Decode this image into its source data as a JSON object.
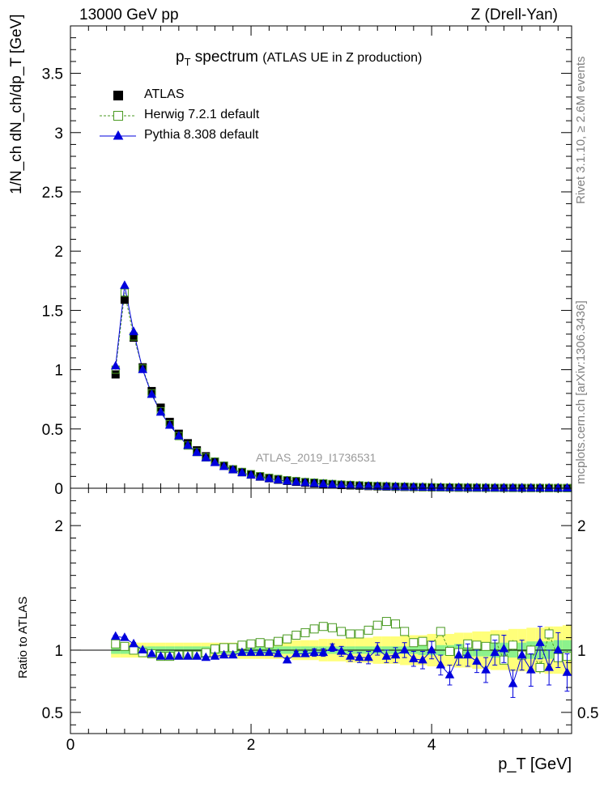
{
  "header": {
    "left": "13000 GeV pp",
    "right": "Z (Drell-Yan)"
  },
  "side_labels": {
    "rivet": "Rivet 3.1.10, ≥ 2.6M events",
    "mcplots": "mcplots.cern.ch [arXiv:1306.3436]"
  },
  "chart_data": [
    {
      "type": "scatter",
      "panel": "main",
      "title_main": "p",
      "title_sub": "T",
      "title_rest": " spectrum",
      "title_note": "(ATLAS UE in Z production)",
      "ylabel": "1/N_ch dN_ch/dp_T [GeV]",
      "xlim": [
        0,
        5.55
      ],
      "ylim": [
        0,
        3.9
      ],
      "yticks": [
        0,
        0.5,
        1,
        1.5,
        2,
        2.5,
        3,
        3.5
      ],
      "ytick_labels": [
        "0",
        "0.5",
        "1",
        "1.5",
        "2",
        "2.5",
        "3",
        "3.5"
      ],
      "analysis_label": "ATLAS_2019_I1736531",
      "legend": [
        "ATLAS",
        "Herwig 7.2.1 default",
        "Pythia 8.308 default"
      ],
      "legend_position": "top-left",
      "x": [
        0.5,
        0.6,
        0.7,
        0.8,
        0.9,
        1.0,
        1.1,
        1.2,
        1.3,
        1.4,
        1.5,
        1.6,
        1.7,
        1.8,
        1.9,
        2.0,
        2.1,
        2.2,
        2.3,
        2.4,
        2.5,
        2.6,
        2.7,
        2.8,
        2.9,
        3.0,
        3.1,
        3.2,
        3.3,
        3.4,
        3.5,
        3.6,
        3.7,
        3.8,
        3.9,
        4.0,
        4.1,
        4.2,
        4.3,
        4.4,
        4.5,
        4.6,
        4.7,
        4.8,
        4.9,
        5.0,
        5.1,
        5.2,
        5.3,
        5.4,
        5.5
      ],
      "series": [
        {
          "name": "ATLAS",
          "color": "#000000",
          "values": [
            0.96,
            1.59,
            1.27,
            1.02,
            0.82,
            0.68,
            0.56,
            0.46,
            0.38,
            0.32,
            0.27,
            0.225,
            0.19,
            0.16,
            0.135,
            0.115,
            0.098,
            0.084,
            0.072,
            0.062,
            0.054,
            0.047,
            0.041,
            0.036,
            0.031,
            0.027,
            0.024,
            0.021,
            0.018,
            0.016,
            0.014,
            0.012,
            0.011,
            0.0095,
            0.0085,
            0.0075,
            0.0066,
            0.0058,
            0.0051,
            0.0045,
            0.004,
            0.0035,
            0.0031,
            0.0027,
            0.0024,
            0.0021,
            0.0019,
            0.0017,
            0.0015,
            0.0013,
            0.0012
          ]
        },
        {
          "name": "Herwig 7.2.1 default",
          "color": "#4a9a22",
          "values": [
            1.0,
            1.65,
            1.28,
            1.01,
            0.8,
            0.65,
            0.54,
            0.44,
            0.36,
            0.305,
            0.26,
            0.225,
            0.19,
            0.16,
            0.138,
            0.119,
            0.102,
            0.088,
            0.078,
            0.068,
            0.061,
            0.053,
            0.048,
            0.042,
            0.036,
            0.031,
            0.028,
            0.024,
            0.021,
            0.019,
            0.017,
            0.014,
            0.013,
            0.011,
            0.0095,
            0.0085,
            0.0072,
            0.0064,
            0.0056,
            0.0049,
            0.0044,
            0.0039,
            0.0034,
            0.003,
            0.0026,
            0.0023,
            0.0021,
            0.0019,
            0.0016,
            0.0014,
            0.0013
          ]
        },
        {
          "name": "Pythia 8.308 default",
          "color": "#0000dd",
          "values": [
            1.03,
            1.71,
            1.32,
            1.0,
            0.79,
            0.64,
            0.53,
            0.44,
            0.36,
            0.3,
            0.255,
            0.215,
            0.182,
            0.154,
            0.13,
            0.11,
            0.094,
            0.08,
            0.07,
            0.06,
            0.052,
            0.046,
            0.04,
            0.035,
            0.03,
            0.026,
            0.023,
            0.02,
            0.017,
            0.015,
            0.013,
            0.012,
            0.01,
            0.0088,
            0.0077,
            0.0068,
            0.006,
            0.0052,
            0.0046,
            0.004,
            0.0036,
            0.0031,
            0.0027,
            0.0024,
            0.0021,
            0.0019,
            0.0016,
            0.0014,
            0.0012,
            0.0011,
            0.001
          ]
        }
      ]
    },
    {
      "type": "scatter",
      "panel": "ratio",
      "xlabel": "p_T [GeV]",
      "ylabel": "Ratio to ATLAS",
      "xlim": [
        0,
        5.55
      ],
      "ylim": [
        0.33,
        2.3
      ],
      "xticks": [
        0,
        2,
        4
      ],
      "xtick_labels": [
        "0",
        "2",
        "4"
      ],
      "yticks": [
        0.5,
        1,
        2
      ],
      "ytick_labels": [
        "0.5",
        "1",
        "2"
      ],
      "x": [
        0.5,
        0.6,
        0.7,
        0.8,
        0.9,
        1.0,
        1.1,
        1.2,
        1.3,
        1.4,
        1.5,
        1.6,
        1.7,
        1.8,
        1.9,
        2.0,
        2.1,
        2.2,
        2.3,
        2.4,
        2.5,
        2.6,
        2.7,
        2.8,
        2.9,
        3.0,
        3.1,
        3.2,
        3.3,
        3.4,
        3.5,
        3.6,
        3.7,
        3.8,
        3.9,
        4.0,
        4.1,
        4.2,
        4.3,
        4.4,
        4.5,
        4.6,
        4.7,
        4.8,
        4.9,
        5.0,
        5.1,
        5.2,
        5.3,
        5.4,
        5.5
      ],
      "band_inner": [
        0.03,
        0.03,
        0.03,
        0.03,
        0.03,
        0.03,
        0.03,
        0.03,
        0.03,
        0.03,
        0.03,
        0.03,
        0.03,
        0.03,
        0.03,
        0.03,
        0.03,
        0.03,
        0.03,
        0.03,
        0.03,
        0.03,
        0.03,
        0.03,
        0.03,
        0.03,
        0.03,
        0.03,
        0.03,
        0.03,
        0.03,
        0.03,
        0.03,
        0.03,
        0.04,
        0.04,
        0.04,
        0.04,
        0.05,
        0.05,
        0.05,
        0.05,
        0.06,
        0.06,
        0.06,
        0.06,
        0.07,
        0.07,
        0.07,
        0.08,
        0.08
      ],
      "band_outer": [
        0.06,
        0.06,
        0.06,
        0.06,
        0.06,
        0.06,
        0.06,
        0.06,
        0.06,
        0.06,
        0.06,
        0.06,
        0.06,
        0.06,
        0.07,
        0.07,
        0.07,
        0.07,
        0.07,
        0.07,
        0.08,
        0.08,
        0.08,
        0.09,
        0.09,
        0.09,
        0.1,
        0.1,
        0.1,
        0.11,
        0.11,
        0.11,
        0.12,
        0.12,
        0.12,
        0.13,
        0.13,
        0.13,
        0.14,
        0.14,
        0.15,
        0.15,
        0.16,
        0.16,
        0.17,
        0.17,
        0.18,
        0.18,
        0.19,
        0.19,
        0.2
      ],
      "series": [
        {
          "name": "Herwig 7.2.1 default",
          "color": "#4a9a22",
          "values": [
            1.05,
            1.03,
            1.0,
            0.98,
            0.97,
            0.95,
            0.95,
            0.96,
            0.96,
            0.96,
            0.98,
            1.01,
            1.02,
            1.02,
            1.04,
            1.05,
            1.06,
            1.05,
            1.07,
            1.09,
            1.12,
            1.14,
            1.17,
            1.19,
            1.18,
            1.15,
            1.13,
            1.13,
            1.16,
            1.2,
            1.23,
            1.21,
            1.15,
            1.06,
            1.07,
            1.04,
            1.15,
            0.99,
            0.98,
            1.05,
            1.04,
            1.03,
            1.09,
            0.92,
            1.04,
            0.96,
            1.0,
            0.86,
            1.13,
            0.94,
            0.95
          ],
          "errors": [
            0.01,
            0.01,
            0.01,
            0.01,
            0.01,
            0.01,
            0.01,
            0.01,
            0.01,
            0.01,
            0.01,
            0.01,
            0.01,
            0.01,
            0.01,
            0.01,
            0.01,
            0.01,
            0.01,
            0.01,
            0.01,
            0.01,
            0.01,
            0.01,
            0.01,
            0.01,
            0.01,
            0.01,
            0.01,
            0.01,
            0.01,
            0.01,
            0.01,
            0.01,
            0.02,
            0.02,
            0.02,
            0.02,
            0.02,
            0.03,
            0.03,
            0.03,
            0.03,
            0.03,
            0.04,
            0.04,
            0.04,
            0.05,
            0.05,
            0.05,
            0.05
          ]
        },
        {
          "name": "Pythia 8.308 default",
          "color": "#0000dd",
          "values": [
            1.11,
            1.1,
            1.05,
            1.0,
            0.97,
            0.95,
            0.95,
            0.95,
            0.95,
            0.95,
            0.94,
            0.95,
            0.96,
            0.96,
            0.98,
            0.98,
            0.98,
            0.98,
            0.97,
            0.92,
            0.97,
            0.97,
            0.98,
            0.98,
            1.02,
            0.99,
            0.95,
            0.94,
            0.94,
            1.01,
            0.95,
            0.96,
            1.0,
            0.93,
            0.92,
            1.0,
            0.88,
            0.8,
            0.96,
            0.96,
            0.91,
            0.84,
            0.98,
            1.01,
            0.73,
            0.96,
            0.84,
            1.06,
            0.86,
            1.0,
            0.82
          ],
          "errors": [
            0.01,
            0.01,
            0.01,
            0.01,
            0.01,
            0.01,
            0.01,
            0.01,
            0.01,
            0.01,
            0.01,
            0.01,
            0.01,
            0.01,
            0.01,
            0.01,
            0.01,
            0.01,
            0.02,
            0.02,
            0.02,
            0.02,
            0.03,
            0.03,
            0.03,
            0.04,
            0.04,
            0.04,
            0.05,
            0.05,
            0.05,
            0.06,
            0.06,
            0.06,
            0.07,
            0.07,
            0.08,
            0.08,
            0.08,
            0.09,
            0.09,
            0.1,
            0.1,
            0.11,
            0.11,
            0.12,
            0.13,
            0.13,
            0.14,
            0.14,
            0.15
          ]
        }
      ]
    }
  ]
}
